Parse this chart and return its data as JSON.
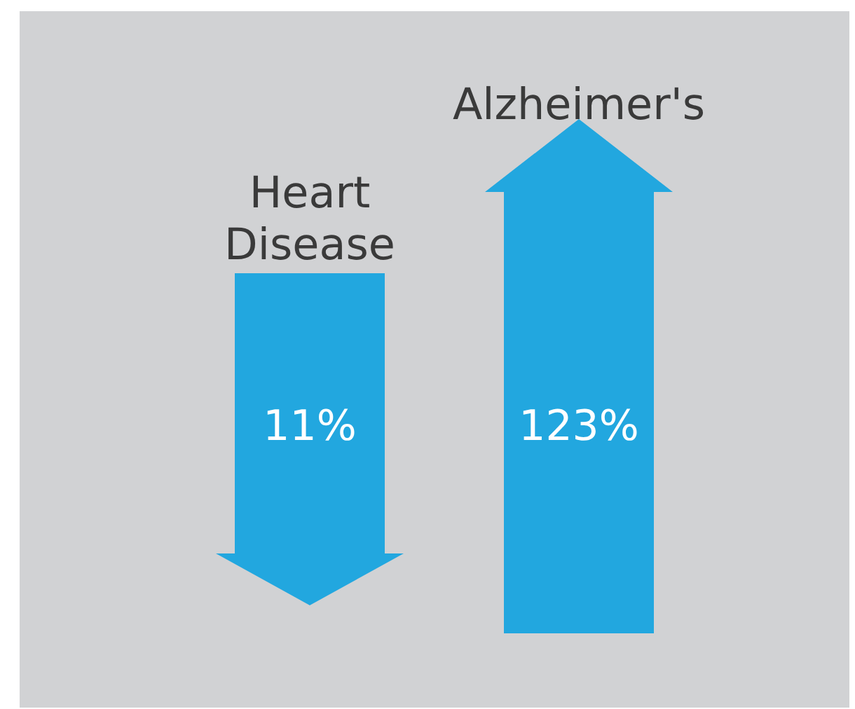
{
  "chart_data": {
    "type": "other",
    "categories": [
      "Heart Disease",
      "Alzheimer's"
    ],
    "values": [
      11,
      123
    ],
    "value_labels": [
      "11%",
      "123%"
    ],
    "color": "#22a7df"
  }
}
